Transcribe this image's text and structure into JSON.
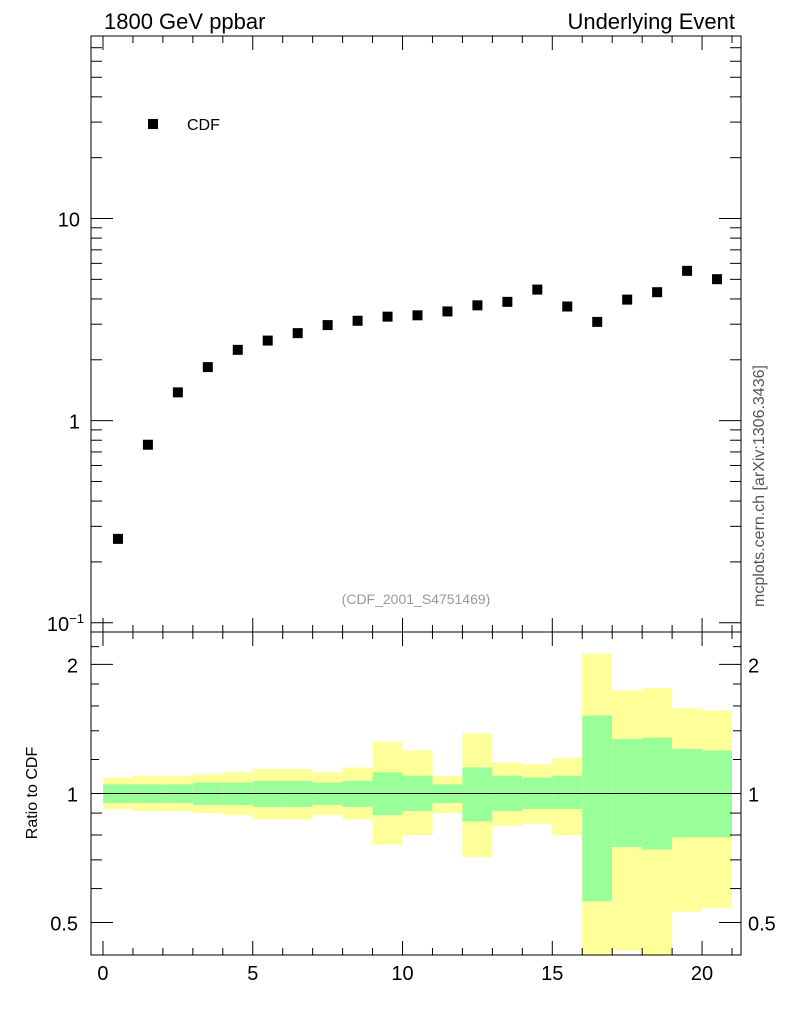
{
  "header": {
    "left_title": "1800 GeV ppbar",
    "right_title": "Underlying Event"
  },
  "watermark": "(CDF_2001_S4751469)",
  "side_label": "mcplots.cern.ch [arXiv:1306.3436]",
  "chart_data": [
    {
      "type": "scatter",
      "panel": "main",
      "yscale": "log",
      "ylim": [
        0.09,
        80
      ],
      "xlim": [
        -0.4,
        21.3
      ],
      "legend": {
        "entries": [
          "CDF"
        ],
        "placement": "top-left"
      },
      "y_tick_labels": [
        "10",
        "1"
      ],
      "series": [
        {
          "name": "CDF",
          "x": [
            0.5,
            1.5,
            2.5,
            3.5,
            4.5,
            5.5,
            6.5,
            7.5,
            8.5,
            9.5,
            10.5,
            11.5,
            12.5,
            13.5,
            14.5,
            15.5,
            16.5,
            17.5,
            18.5,
            19.5,
            20.5
          ],
          "y": [
            0.26,
            0.76,
            1.38,
            1.84,
            2.24,
            2.49,
            2.71,
            2.97,
            3.12,
            3.27,
            3.32,
            3.47,
            3.72,
            3.87,
            4.45,
            3.67,
            3.08,
            3.97,
            4.32,
            5.51,
            5.01
          ]
        }
      ]
    },
    {
      "type": "area",
      "panel": "ratio",
      "ylabel": "Ratio to CDF",
      "ylim": [
        0.42,
        2.38
      ],
      "yscale": "log",
      "y_tick_labels": [
        "2",
        "1",
        "0.5"
      ],
      "x_tick_labels": [
        "0",
        "5",
        "10",
        "15",
        "20"
      ],
      "reference_line": 1,
      "bins": [
        {
          "x0": 0,
          "x1": 1,
          "inner": [
            0.95,
            1.05
          ],
          "outer": [
            0.92,
            1.09
          ]
        },
        {
          "x0": 1,
          "x1": 2,
          "inner": [
            0.95,
            1.05
          ],
          "outer": [
            0.91,
            1.1
          ]
        },
        {
          "x0": 2,
          "x1": 3,
          "inner": [
            0.95,
            1.05
          ],
          "outer": [
            0.91,
            1.1
          ]
        },
        {
          "x0": 3,
          "x1": 4,
          "inner": [
            0.94,
            1.06
          ],
          "outer": [
            0.9,
            1.11
          ]
        },
        {
          "x0": 4,
          "x1": 5,
          "inner": [
            0.94,
            1.06
          ],
          "outer": [
            0.89,
            1.12
          ]
        },
        {
          "x0": 5,
          "x1": 6,
          "inner": [
            0.93,
            1.07
          ],
          "outer": [
            0.87,
            1.14
          ]
        },
        {
          "x0": 6,
          "x1": 7,
          "inner": [
            0.93,
            1.07
          ],
          "outer": [
            0.87,
            1.14
          ]
        },
        {
          "x0": 7,
          "x1": 8,
          "inner": [
            0.94,
            1.06
          ],
          "outer": [
            0.89,
            1.12
          ]
        },
        {
          "x0": 8,
          "x1": 9,
          "inner": [
            0.93,
            1.07
          ],
          "outer": [
            0.87,
            1.15
          ]
        },
        {
          "x0": 9,
          "x1": 10,
          "inner": [
            0.89,
            1.12
          ],
          "outer": [
            0.76,
            1.32
          ]
        },
        {
          "x0": 10,
          "x1": 11,
          "inner": [
            0.91,
            1.1
          ],
          "outer": [
            0.8,
            1.26
          ]
        },
        {
          "x0": 11,
          "x1": 12,
          "inner": [
            0.95,
            1.05
          ],
          "outer": [
            0.9,
            1.1
          ]
        },
        {
          "x0": 12,
          "x1": 13,
          "inner": [
            0.86,
            1.15
          ],
          "outer": [
            0.71,
            1.38
          ]
        },
        {
          "x0": 13,
          "x1": 14,
          "inner": [
            0.91,
            1.1
          ],
          "outer": [
            0.84,
            1.18
          ]
        },
        {
          "x0": 14,
          "x1": 15,
          "inner": [
            0.92,
            1.09
          ],
          "outer": [
            0.85,
            1.17
          ]
        },
        {
          "x0": 15,
          "x1": 16,
          "inner": [
            0.92,
            1.1
          ],
          "outer": [
            0.8,
            1.21
          ]
        },
        {
          "x0": 16,
          "x1": 17,
          "inner": [
            0.56,
            1.52
          ],
          "outer": [
            0.42,
            2.12
          ]
        },
        {
          "x0": 17,
          "x1": 18,
          "inner": [
            0.75,
            1.34
          ],
          "outer": [
            0.43,
            1.74
          ]
        },
        {
          "x0": 18,
          "x1": 19,
          "inner": [
            0.74,
            1.35
          ],
          "outer": [
            0.42,
            1.76
          ]
        },
        {
          "x0": 19,
          "x1": 20,
          "inner": [
            0.79,
            1.27
          ],
          "outer": [
            0.53,
            1.58
          ]
        },
        {
          "x0": 20,
          "x1": 21,
          "inner": [
            0.79,
            1.26
          ],
          "outer": [
            0.54,
            1.56
          ]
        }
      ]
    }
  ],
  "colors": {
    "inner_band": "#99ff99",
    "outer_band": "#ffff99",
    "marker": "#000000",
    "watermark": "#999999",
    "side_label": "#555555"
  }
}
